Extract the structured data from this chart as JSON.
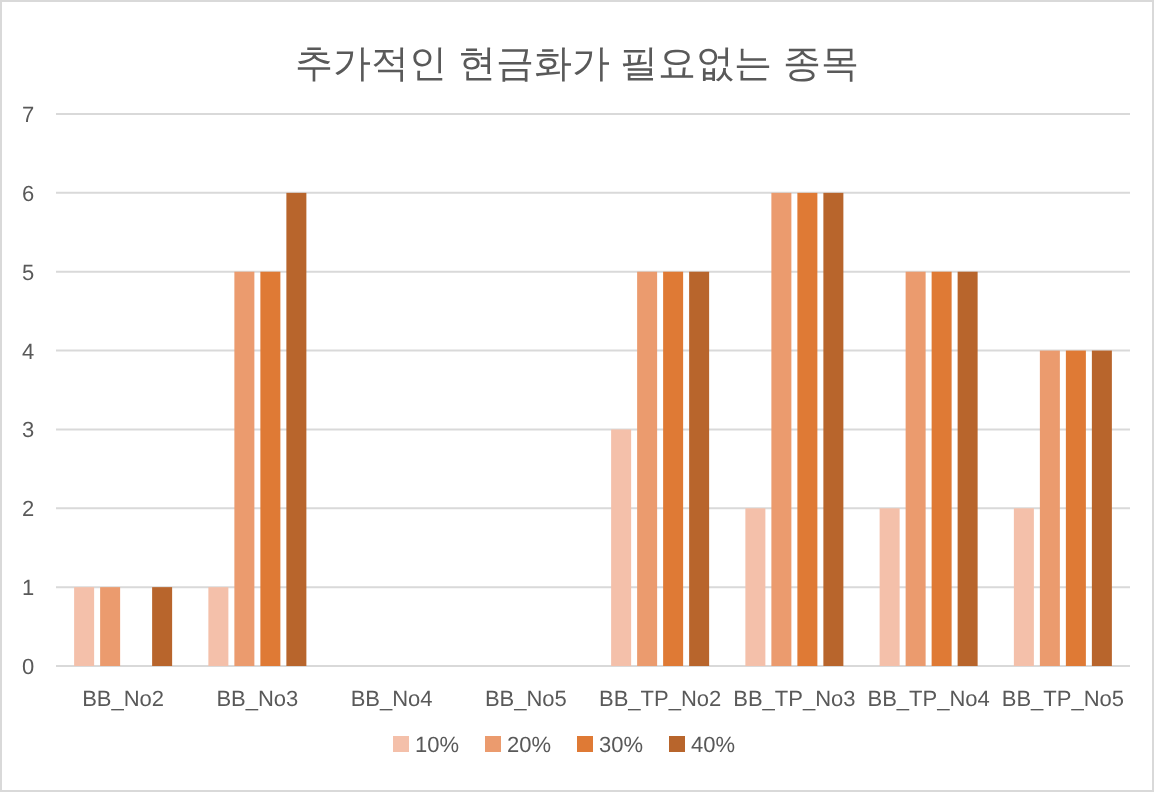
{
  "chart_data": {
    "type": "bar",
    "title": "추가적인 현금화가 필요없는 종목",
    "categories": [
      "BB_No2",
      "BB_No3",
      "BB_No4",
      "BB_No5",
      "BB_TP_No2",
      "BB_TP_No3",
      "BB_TP_No4",
      "BB_TP_No5"
    ],
    "series": [
      {
        "name": "10%",
        "color": "#f4c0aa",
        "values": [
          1,
          1,
          0,
          0,
          3,
          2,
          2,
          2
        ]
      },
      {
        "name": "20%",
        "color": "#eb9b6e",
        "values": [
          1,
          5,
          0,
          0,
          5,
          6,
          5,
          4
        ]
      },
      {
        "name": "30%",
        "color": "#df7a35",
        "values": [
          0,
          5,
          0,
          0,
          5,
          6,
          5,
          4
        ]
      },
      {
        "name": "40%",
        "color": "#b8652c",
        "values": [
          1,
          6,
          0,
          0,
          5,
          6,
          5,
          4
        ]
      }
    ],
    "ylim": [
      0,
      7
    ],
    "yticks": [
      0,
      1,
      2,
      3,
      4,
      5,
      6,
      7
    ],
    "grid": "y",
    "legend": "bottom"
  }
}
